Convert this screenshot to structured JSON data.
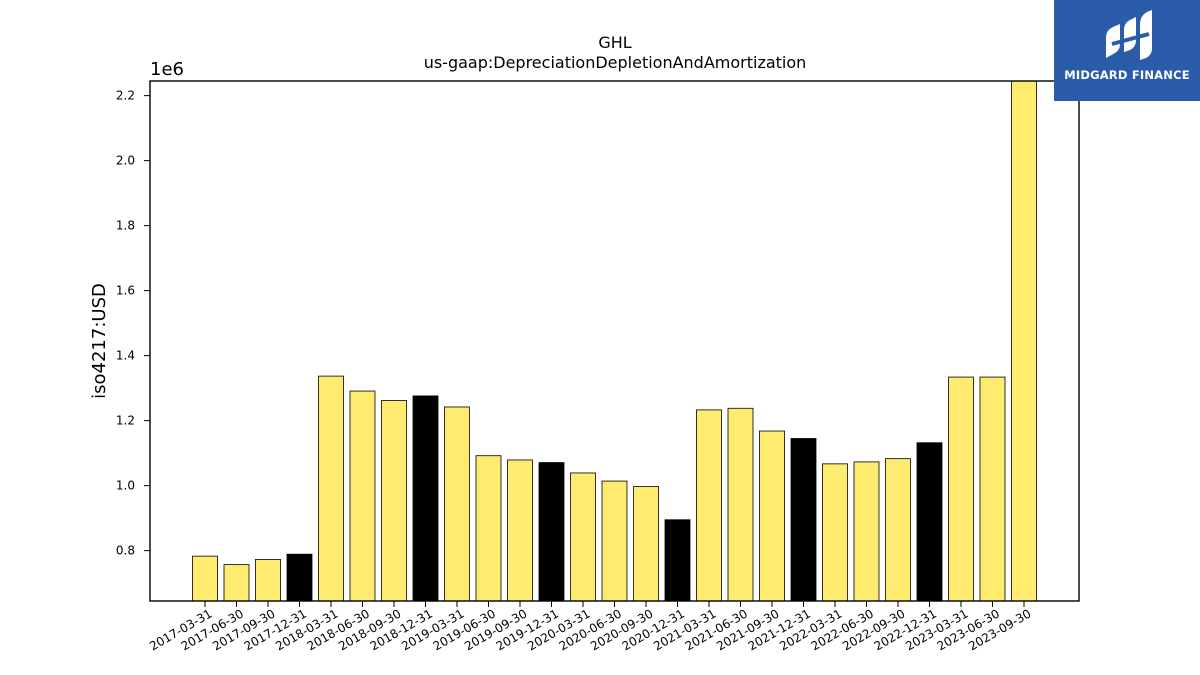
{
  "chart_data": {
    "type": "bar",
    "title": "GHL",
    "subtitle": "us-gaap:DepreciationDepletionAndAmortization",
    "ylabel": "iso4217:USD",
    "xlabel": "",
    "y_offset_label": "1e6",
    "ylim": [
      0.645,
      2.245
    ],
    "yticks": [
      0.8,
      1.0,
      1.2,
      1.4,
      1.6,
      1.8,
      2.0,
      2.2
    ],
    "categories": [
      "2017-03-31",
      "2017-06-30",
      "2017-09-30",
      "2017-12-31",
      "2018-03-31",
      "2018-06-30",
      "2018-09-30",
      "2018-12-31",
      "2019-03-31",
      "2019-06-30",
      "2019-09-30",
      "2019-12-31",
      "2020-03-31",
      "2020-06-30",
      "2020-09-30",
      "2020-12-31",
      "2021-03-31",
      "2021-06-30",
      "2021-09-30",
      "2021-12-31",
      "2022-03-31",
      "2022-06-30",
      "2022-09-30",
      "2022-12-31",
      "2023-03-31",
      "2023-06-30",
      "2023-09-30"
    ],
    "values": [
      0.783,
      0.757,
      0.773,
      0.789,
      1.337,
      1.291,
      1.262,
      1.276,
      1.242,
      1.092,
      1.079,
      1.071,
      1.039,
      1.014,
      0.997,
      0.895,
      1.233,
      1.238,
      1.168,
      1.145,
      1.067,
      1.073,
      1.083,
      1.132,
      1.334,
      1.334,
      2.245
    ],
    "bar_colors": [
      "#ffeb70",
      "#ffeb70",
      "#ffeb70",
      "#000000",
      "#ffeb70",
      "#ffeb70",
      "#ffeb70",
      "#000000",
      "#ffeb70",
      "#ffeb70",
      "#ffeb70",
      "#000000",
      "#ffeb70",
      "#ffeb70",
      "#ffeb70",
      "#000000",
      "#ffeb70",
      "#ffeb70",
      "#ffeb70",
      "#000000",
      "#ffeb70",
      "#ffeb70",
      "#ffeb70",
      "#000000",
      "#ffeb70",
      "#ffeb70",
      "#ffeb70"
    ],
    "grid": false,
    "legend": "none"
  },
  "logo": {
    "text": "MIDGARD FINANCE",
    "color": "#2a5caa"
  }
}
